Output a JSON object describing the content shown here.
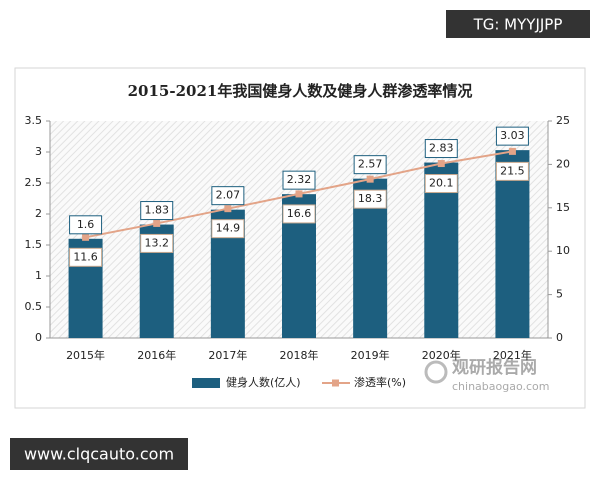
{
  "chart_data": {
    "type": "bar_line",
    "title": "2015-2021年我国健身人数及健身人群渗透率情况",
    "categories": [
      "2015年",
      "2016年",
      "2017年",
      "2018年",
      "2019年",
      "2020年",
      "2021年"
    ],
    "series": [
      {
        "name": "健身人数(亿人)",
        "color": "#1d5f7f",
        "values": [
          1.6,
          1.83,
          2.07,
          2.32,
          2.57,
          2.83,
          3.03
        ]
      },
      {
        "name": "渗透率(%)",
        "color": "#e3a488",
        "axis": "y2",
        "values": [
          11.6,
          13.2,
          14.9,
          16.6,
          18.3,
          20.1,
          21.5
        ]
      }
    ],
    "ylim": [
      0,
      3.5
    ],
    "yticks": [
      0,
      0.5,
      1,
      1.5,
      2,
      2.5,
      3,
      3.5
    ],
    "y2lim": [
      0,
      25
    ],
    "y2ticks": [
      0,
      5,
      10,
      15,
      20,
      25
    ],
    "legend": "bottom"
  },
  "watermarks": [
    "TG: MYYJJPP",
    "www.clqcauto.com",
    "观研报告网",
    "chinabaogao.com"
  ]
}
